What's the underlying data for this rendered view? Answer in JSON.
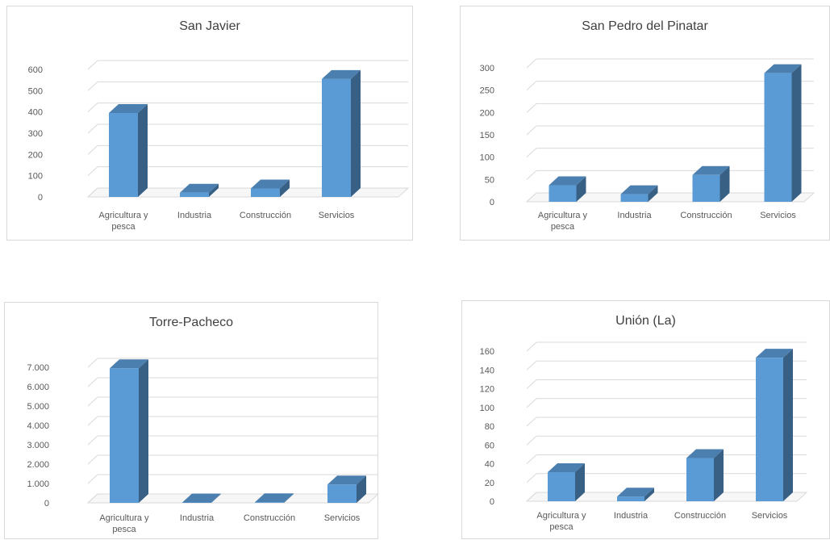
{
  "chart_data": [
    {
      "type": "bar",
      "title": "San Javier",
      "categories": [
        "Agricultura y pesca",
        "Industria",
        "Construcción",
        "Servicios"
      ],
      "values": [
        395,
        20,
        40,
        555
      ],
      "yticks": [
        "0",
        "100",
        "200",
        "300",
        "400",
        "500",
        "600"
      ],
      "ylim": [
        0,
        600
      ],
      "color": "#5b9bd5",
      "grid": true
    },
    {
      "type": "bar",
      "title": "San Pedro del Pinatar",
      "categories": [
        "Agricultura y pesca",
        "Industria",
        "Construcción",
        "Servicios"
      ],
      "values": [
        37,
        17,
        60,
        288
      ],
      "yticks": [
        "0",
        "50",
        "100",
        "150",
        "200",
        "250",
        "300"
      ],
      "ylim": [
        0,
        300
      ],
      "color": "#5b9bd5",
      "grid": true
    },
    {
      "type": "bar",
      "title": "Torre-Pacheco",
      "categories": [
        "Agricultura y pesca",
        "Industria",
        "Construcción",
        "Servicios"
      ],
      "values": [
        6950,
        20,
        30,
        950
      ],
      "yticks": [
        "0",
        "1.000",
        "2.000",
        "3.000",
        "4.000",
        "5.000",
        "6.000",
        "7.000"
      ],
      "ylim": [
        0,
        7000
      ],
      "color": "#5b9bd5",
      "grid": true
    },
    {
      "type": "bar",
      "title": "Unión (La)",
      "categories": [
        "Agricultura y pesca",
        "Industria",
        "Construcción",
        "Servicios"
      ],
      "values": [
        31,
        5,
        46,
        153
      ],
      "yticks": [
        "0",
        "20",
        "40",
        "60",
        "80",
        "100",
        "120",
        "140",
        "160"
      ],
      "ylim": [
        0,
        160
      ],
      "color": "#5b9bd5",
      "grid": true
    }
  ]
}
